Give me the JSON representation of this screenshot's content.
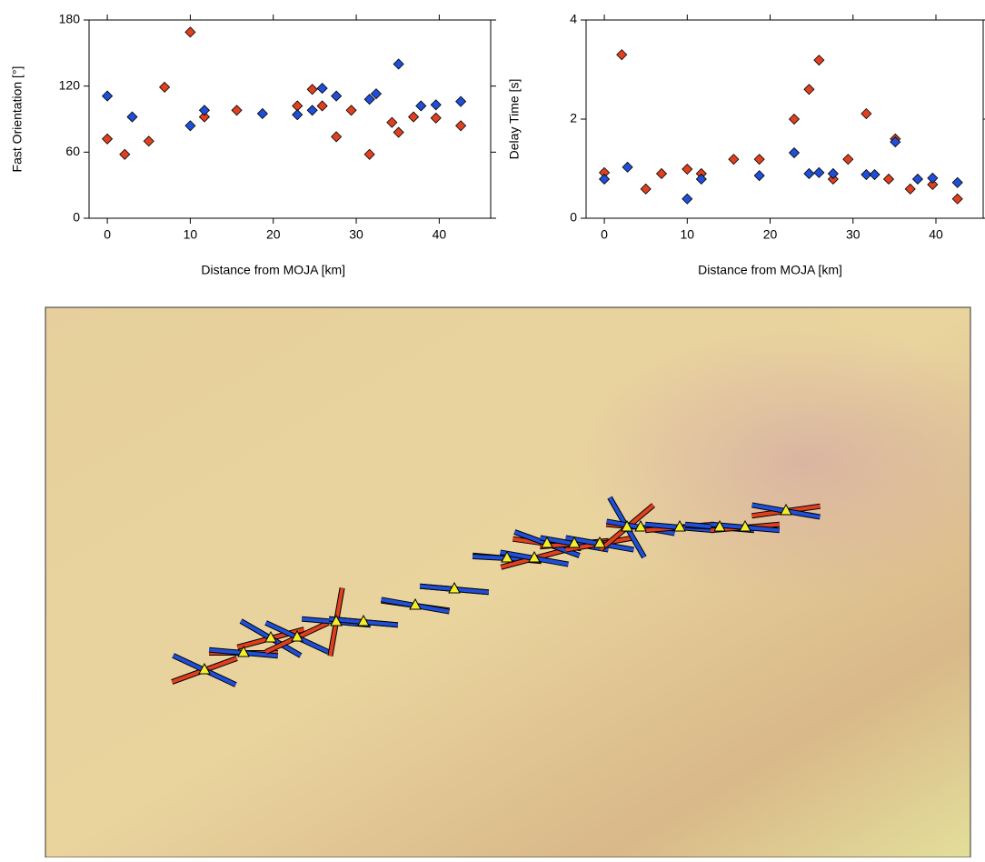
{
  "chart_data": [
    {
      "type": "scatter",
      "y_label": "Fast Orientation [°]",
      "x_label": "Distance from MOJA [km]",
      "xlim": [
        -2.2,
        46.2
      ],
      "ylim": [
        0,
        180
      ],
      "xticks": [
        0,
        10,
        20,
        30,
        40
      ],
      "yticks": [
        0,
        60,
        120,
        180
      ],
      "series": [
        {
          "color": "#e0401f",
          "x": [
            0,
            2.1,
            5.0,
            6.9,
            10.0,
            11.7,
            15.6,
            22.9,
            24.7,
            25.9,
            27.6,
            29.4,
            31.6,
            34.3,
            35.1,
            36.9,
            39.6,
            42.6
          ],
          "values": [
            72,
            58,
            70,
            119,
            169,
            92,
            98,
            102,
            117,
            102,
            74,
            98,
            58,
            87,
            78,
            92,
            91,
            84
          ]
        },
        {
          "color": "#1f4fd6",
          "x": [
            0,
            3.0,
            10.0,
            11.7,
            18.7,
            22.9,
            24.7,
            25.9,
            27.6,
            31.6,
            32.4,
            35.1,
            37.8,
            39.6,
            42.6
          ],
          "values": [
            111,
            92,
            84,
            98,
            95,
            94,
            98,
            118,
            111,
            108,
            113,
            140,
            102,
            103,
            106
          ]
        }
      ]
    },
    {
      "type": "scatter",
      "y_label": "Delay Time [s]",
      "x_label": "Distance from MOJA [km]",
      "xlim": [
        -2.2,
        45.7
      ],
      "ylim": [
        0,
        4
      ],
      "xticks": [
        0,
        10,
        20,
        30,
        40
      ],
      "yticks": [
        0,
        2,
        4
      ],
      "series": [
        {
          "color": "#e0401f",
          "x": [
            0,
            2.1,
            5.0,
            6.9,
            10.0,
            11.7,
            15.6,
            18.7,
            22.9,
            24.7,
            25.9,
            27.6,
            29.4,
            31.6,
            34.3,
            35.1,
            36.9,
            39.6,
            42.6
          ],
          "values": [
            0.92,
            3.3,
            0.59,
            0.9,
            0.99,
            0.9,
            1.19,
            1.19,
            2.0,
            2.6,
            3.19,
            0.79,
            1.19,
            2.11,
            0.79,
            1.6,
            0.59,
            0.68,
            0.39
          ]
        },
        {
          "color": "#1f4fd6",
          "x": [
            0,
            2.8,
            10.0,
            11.7,
            18.7,
            22.9,
            24.7,
            25.9,
            27.6,
            31.6,
            32.6,
            35.1,
            37.8,
            39.6,
            42.6
          ],
          "values": [
            0.79,
            1.03,
            0.39,
            0.79,
            0.86,
            1.32,
            0.9,
            0.92,
            0.9,
            0.88,
            0.88,
            1.54,
            0.79,
            0.81,
            0.72
          ]
        }
      ]
    }
  ]
}
